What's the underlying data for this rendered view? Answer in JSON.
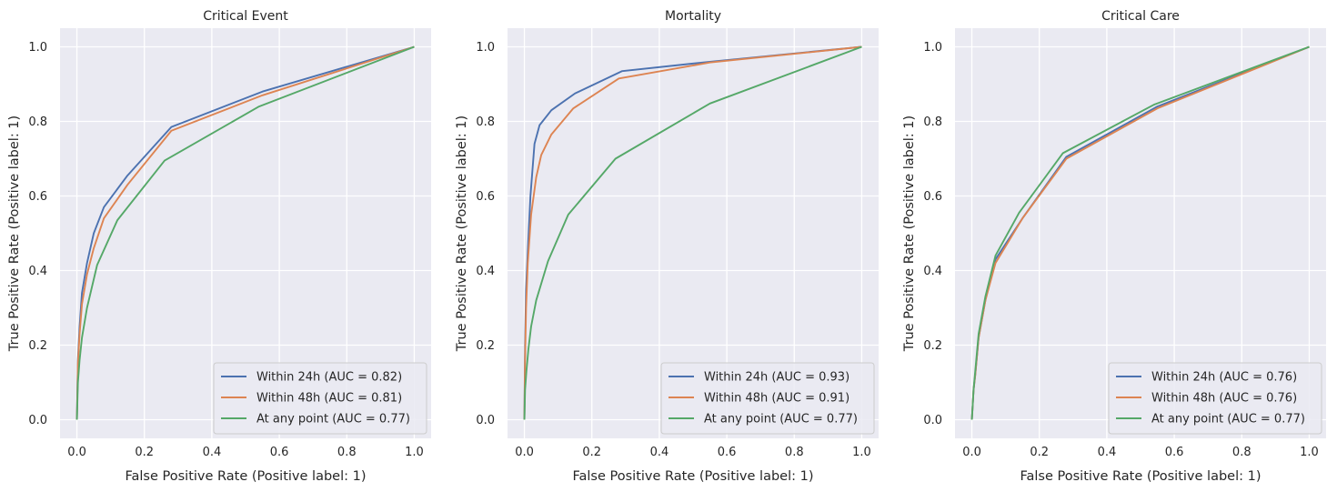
{
  "chart_data": [
    {
      "type": "line",
      "title": "Critical Event",
      "xlabel": "False Positive Rate (Positive label: 1)",
      "ylabel": "True Positive Rate (Positive label: 1)",
      "xlim": [
        -0.05,
        1.05
      ],
      "ylim": [
        -0.05,
        1.05
      ],
      "xticks": [
        "0.0",
        "0.2",
        "0.4",
        "0.6",
        "0.8",
        "1.0"
      ],
      "yticks": [
        "0.0",
        "0.2",
        "0.4",
        "0.6",
        "0.8",
        "1.0"
      ],
      "grid": true,
      "legend_position": "lower-right",
      "series": [
        {
          "name": "Within 24h (AUC = 0.82)",
          "color": "#4c72b0",
          "x": [
            0,
            0.003,
            0.008,
            0.015,
            0.03,
            0.05,
            0.08,
            0.15,
            0.28,
            0.55,
            1.0
          ],
          "y": [
            0,
            0.16,
            0.25,
            0.34,
            0.42,
            0.5,
            0.57,
            0.655,
            0.785,
            0.88,
            1.0
          ]
        },
        {
          "name": "Within 48h (AUC = 0.81)",
          "color": "#dd8452",
          "x": [
            0,
            0.003,
            0.008,
            0.015,
            0.03,
            0.05,
            0.08,
            0.15,
            0.28,
            0.55,
            1.0
          ],
          "y": [
            0,
            0.15,
            0.23,
            0.31,
            0.39,
            0.46,
            0.54,
            0.63,
            0.775,
            0.87,
            1.0
          ]
        },
        {
          "name": "At any point (AUC = 0.77)",
          "color": "#55a868",
          "x": [
            0,
            0.003,
            0.008,
            0.015,
            0.03,
            0.06,
            0.12,
            0.26,
            0.54,
            1.0
          ],
          "y": [
            0,
            0.1,
            0.16,
            0.22,
            0.3,
            0.415,
            0.535,
            0.695,
            0.84,
            1.0
          ]
        }
      ]
    },
    {
      "type": "line",
      "title": "Mortality",
      "xlabel": "False Positive Rate (Positive label: 1)",
      "ylabel": "True Positive Rate (Positive label: 1)",
      "xlim": [
        -0.05,
        1.05
      ],
      "ylim": [
        -0.05,
        1.05
      ],
      "xticks": [
        "0.0",
        "0.2",
        "0.4",
        "0.6",
        "0.8",
        "1.0"
      ],
      "yticks": [
        "0.0",
        "0.2",
        "0.4",
        "0.6",
        "0.8",
        "1.0"
      ],
      "grid": true,
      "legend_position": "lower-right",
      "series": [
        {
          "name": "Within 24h (AUC = 0.93)",
          "color": "#4c72b0",
          "x": [
            0,
            0.002,
            0.005,
            0.01,
            0.018,
            0.03,
            0.045,
            0.08,
            0.15,
            0.29,
            0.55,
            1.0
          ],
          "y": [
            0,
            0.2,
            0.35,
            0.45,
            0.6,
            0.74,
            0.79,
            0.83,
            0.875,
            0.935,
            0.96,
            1.0
          ]
        },
        {
          "name": "Within 48h (AUC = 0.91)",
          "color": "#dd8452",
          "x": [
            0,
            0.002,
            0.005,
            0.01,
            0.02,
            0.035,
            0.05,
            0.08,
            0.145,
            0.28,
            0.55,
            1.0
          ],
          "y": [
            0,
            0.16,
            0.3,
            0.42,
            0.55,
            0.65,
            0.71,
            0.765,
            0.835,
            0.915,
            0.958,
            1.0
          ]
        },
        {
          "name": "At any point (AUC = 0.77)",
          "color": "#55a868",
          "x": [
            0,
            0.002,
            0.006,
            0.012,
            0.02,
            0.035,
            0.07,
            0.13,
            0.27,
            0.55,
            1.0
          ],
          "y": [
            0,
            0.08,
            0.13,
            0.19,
            0.25,
            0.32,
            0.425,
            0.55,
            0.7,
            0.848,
            1.0
          ]
        }
      ]
    },
    {
      "type": "line",
      "title": "Critical Care",
      "xlabel": "False Positive Rate (Positive label: 1)",
      "ylabel": "True Positive Rate (Positive label: 1)",
      "xlim": [
        -0.05,
        1.05
      ],
      "ylim": [
        -0.05,
        1.05
      ],
      "xticks": [
        "0.0",
        "0.2",
        "0.4",
        "0.6",
        "0.8",
        "1.0"
      ],
      "yticks": [
        "0.0",
        "0.2",
        "0.4",
        "0.6",
        "0.8",
        "1.0"
      ],
      "grid": true,
      "legend_position": "lower-right",
      "series": [
        {
          "name": "Within 24h (AUC = 0.76)",
          "color": "#4c72b0",
          "x": [
            0,
            0.005,
            0.01,
            0.02,
            0.04,
            0.07,
            0.15,
            0.28,
            0.55,
            1.0
          ],
          "y": [
            0,
            0.08,
            0.12,
            0.22,
            0.32,
            0.43,
            0.54,
            0.705,
            0.84,
            1.0
          ]
        },
        {
          "name": "Within 48h (AUC = 0.76)",
          "color": "#dd8452",
          "x": [
            0,
            0.005,
            0.01,
            0.02,
            0.04,
            0.07,
            0.15,
            0.28,
            0.55,
            1.0
          ],
          "y": [
            0,
            0.08,
            0.12,
            0.22,
            0.32,
            0.42,
            0.54,
            0.7,
            0.835,
            1.0
          ]
        },
        {
          "name": "At any point (AUC = 0.77)",
          "color": "#55a868",
          "x": [
            0,
            0.005,
            0.01,
            0.02,
            0.04,
            0.07,
            0.14,
            0.27,
            0.54,
            1.0
          ],
          "y": [
            0,
            0.08,
            0.13,
            0.23,
            0.33,
            0.44,
            0.555,
            0.715,
            0.845,
            1.0
          ]
        }
      ]
    }
  ]
}
